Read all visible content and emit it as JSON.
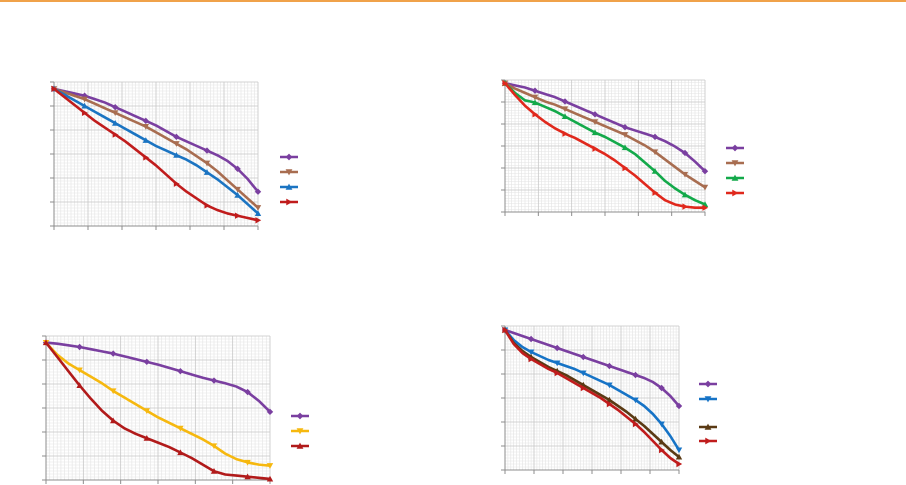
{
  "colors": {
    "top_rule": "#f0a24a"
  },
  "chart_data": [
    {
      "type": "line",
      "grid": true,
      "legend": "right",
      "x": [
        0,
        1,
        2,
        3,
        4,
        5,
        6,
        7,
        8,
        9,
        10,
        11,
        12,
        13,
        14,
        15,
        16,
        17,
        18,
        19,
        20
      ],
      "ylim": [
        -12,
        0.6
      ],
      "series": [
        {
          "color": "#7a3fa0",
          "marker": "diamond",
          "values": [
            0,
            -0.2,
            -0.4,
            -0.6,
            -0.9,
            -1.2,
            -1.6,
            -2.0,
            -2.4,
            -2.8,
            -3.2,
            -3.7,
            -4.2,
            -4.6,
            -5.0,
            -5.4,
            -5.8,
            -6.3,
            -7.0,
            -7.9,
            -9.0
          ]
        },
        {
          "color": "#a86d50",
          "marker": "triangle-down",
          "values": [
            0,
            -0.3,
            -0.6,
            -0.9,
            -1.3,
            -1.7,
            -2.1,
            -2.5,
            -2.9,
            -3.3,
            -3.8,
            -4.3,
            -4.8,
            -5.3,
            -5.9,
            -6.5,
            -7.2,
            -8.0,
            -8.8,
            -9.6,
            -10.4
          ]
        },
        {
          "color": "#1b74c2",
          "marker": "triangle-up",
          "values": [
            0,
            -0.5,
            -1.0,
            -1.5,
            -2.0,
            -2.5,
            -3.0,
            -3.5,
            -4.0,
            -4.5,
            -5.0,
            -5.4,
            -5.8,
            -6.2,
            -6.7,
            -7.3,
            -7.9,
            -8.6,
            -9.3,
            -10.1,
            -10.9
          ]
        },
        {
          "color": "#c01c1c",
          "marker": "triangle-right",
          "values": [
            0,
            -0.7,
            -1.4,
            -2.1,
            -2.8,
            -3.4,
            -4.0,
            -4.6,
            -5.3,
            -6.0,
            -6.7,
            -7.5,
            -8.3,
            -9.0,
            -9.6,
            -10.2,
            -10.6,
            -10.9,
            -11.1,
            -11.3,
            -11.5
          ]
        }
      ]
    },
    {
      "type": "line",
      "grid": true,
      "legend": "right",
      "x": [
        0,
        1,
        2,
        3,
        4,
        5,
        6,
        7,
        8,
        9,
        10,
        11,
        12,
        13,
        14,
        15,
        16,
        17,
        18,
        19,
        20
      ],
      "ylim": [
        -12,
        0.3
      ],
      "series": [
        {
          "color": "#7a3fa0",
          "marker": "diamond",
          "values": [
            0,
            -0.2,
            -0.4,
            -0.7,
            -1.0,
            -1.3,
            -1.7,
            -2.1,
            -2.5,
            -2.9,
            -3.3,
            -3.7,
            -4.1,
            -4.4,
            -4.7,
            -5.0,
            -5.4,
            -5.9,
            -6.5,
            -7.3,
            -8.2
          ]
        },
        {
          "color": "#a86d50",
          "marker": "triangle-down",
          "values": [
            0,
            -0.5,
            -0.9,
            -1.3,
            -1.7,
            -2.0,
            -2.4,
            -2.8,
            -3.2,
            -3.6,
            -4.0,
            -4.4,
            -4.8,
            -5.3,
            -5.8,
            -6.4,
            -7.1,
            -7.8,
            -8.5,
            -9.1,
            -9.7
          ]
        },
        {
          "color": "#13a94a",
          "marker": "triangle-up",
          "values": [
            0,
            -0.9,
            -1.6,
            -1.8,
            -2.2,
            -2.6,
            -3.1,
            -3.6,
            -4.1,
            -4.6,
            -5.0,
            -5.5,
            -6.0,
            -6.6,
            -7.4,
            -8.2,
            -9.1,
            -9.8,
            -10.4,
            -10.9,
            -11.3
          ]
        },
        {
          "color": "#e0281c",
          "marker": "triangle-right",
          "values": [
            0,
            -1.1,
            -2.1,
            -2.9,
            -3.6,
            -4.2,
            -4.7,
            -5.1,
            -5.6,
            -6.1,
            -6.6,
            -7.2,
            -7.9,
            -8.6,
            -9.4,
            -10.2,
            -10.9,
            -11.3,
            -11.5,
            -11.6,
            -11.6
          ]
        }
      ]
    },
    {
      "type": "line",
      "grid": true,
      "legend": "right",
      "x": [
        0,
        1,
        2,
        3,
        4,
        5,
        6,
        7,
        8,
        9,
        10,
        11,
        12,
        13,
        14,
        15,
        16,
        17,
        18,
        19,
        20
      ],
      "ylim": [
        -12.5,
        0.6
      ],
      "series": [
        {
          "color": "#7a3fa0",
          "marker": "diamond",
          "values": [
            0,
            -0.1,
            -0.25,
            -0.4,
            -0.6,
            -0.8,
            -1.0,
            -1.25,
            -1.5,
            -1.75,
            -2.0,
            -2.3,
            -2.6,
            -2.9,
            -3.2,
            -3.45,
            -3.7,
            -4.0,
            -4.5,
            -5.3,
            -6.3
          ]
        },
        {
          "color": "#f6b80f",
          "marker": "triangle-down",
          "values": [
            0,
            -1.1,
            -1.9,
            -2.5,
            -3.1,
            -3.7,
            -4.4,
            -5.0,
            -5.6,
            -6.2,
            -6.8,
            -7.3,
            -7.8,
            -8.3,
            -8.8,
            -9.4,
            -10.1,
            -10.6,
            -10.9,
            -11.1,
            -11.2
          ]
        },
        {
          "color": "#b11a1a",
          "marker": "triangle-up",
          "values": [
            0,
            -1.3,
            -2.6,
            -3.9,
            -5.1,
            -6.2,
            -7.1,
            -7.8,
            -8.3,
            -8.7,
            -9.1,
            -9.5,
            -10.0,
            -10.5,
            -11.1,
            -11.7,
            -12.0,
            -12.1,
            -12.2,
            -12.3,
            -12.4
          ]
        }
      ]
    },
    {
      "type": "line",
      "grid": true,
      "legend": "right",
      "x": [
        0,
        1,
        2,
        3,
        4,
        5,
        6,
        7,
        8,
        9,
        10,
        11,
        12,
        13,
        14,
        15,
        16,
        17,
        18,
        19,
        20
      ],
      "ylim": [
        -14,
        0.4
      ],
      "series": [
        {
          "color": "#7a3fa0",
          "marker": "diamond",
          "values": [
            0,
            -0.3,
            -0.6,
            -0.9,
            -1.2,
            -1.5,
            -1.8,
            -2.1,
            -2.4,
            -2.7,
            -3.0,
            -3.3,
            -3.6,
            -3.9,
            -4.2,
            -4.5,
            -4.8,
            -5.2,
            -5.8,
            -6.6,
            -7.6
          ]
        },
        {
          "color": "#1673c6",
          "marker": "triangle-down",
          "values": [
            0,
            -1.0,
            -1.7,
            -2.2,
            -2.6,
            -3.0,
            -3.3,
            -3.6,
            -3.9,
            -4.3,
            -4.7,
            -5.1,
            -5.5,
            -6.0,
            -6.5,
            -7.0,
            -7.6,
            -8.4,
            -9.4,
            -10.6,
            -12.0
          ]
        },
        {
          "color": "#5a3a14",
          "marker": "triangle-up",
          "values": [
            0,
            -1.3,
            -2.1,
            -2.7,
            -3.2,
            -3.7,
            -4.1,
            -4.5,
            -5.0,
            -5.5,
            -6.0,
            -6.5,
            -7.0,
            -7.6,
            -8.2,
            -8.9,
            -9.6,
            -10.4,
            -11.2,
            -12.0,
            -12.7
          ]
        },
        {
          "color": "#c01c1c",
          "marker": "triangle-right",
          "values": [
            0,
            -1.4,
            -2.3,
            -2.9,
            -3.4,
            -3.9,
            -4.3,
            -4.8,
            -5.3,
            -5.8,
            -6.3,
            -6.8,
            -7.4,
            -8.0,
            -8.7,
            -9.4,
            -10.2,
            -11.1,
            -12.0,
            -12.8,
            -13.4
          ]
        }
      ]
    }
  ]
}
